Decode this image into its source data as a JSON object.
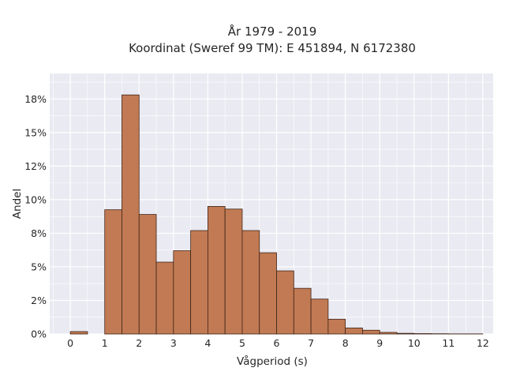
{
  "chart_data": {
    "type": "bar",
    "title_line1": "År 1979 - 2019",
    "title_line2": "Koordinat (Sweref 99 TM): E 451894, N 6172380",
    "xlabel": "Vågperiod (s)",
    "ylabel": "Andel",
    "bin_width": 0.5,
    "bins": [
      {
        "x0": 0.0,
        "value": 0.18
      },
      {
        "x0": 0.5,
        "value": 0.0
      },
      {
        "x0": 1.0,
        "value": 9.25
      },
      {
        "x0": 1.5,
        "value": 17.8
      },
      {
        "x0": 2.0,
        "value": 8.9
      },
      {
        "x0": 2.5,
        "value": 5.35
      },
      {
        "x0": 3.0,
        "value": 6.2
      },
      {
        "x0": 3.5,
        "value": 7.7
      },
      {
        "x0": 4.0,
        "value": 9.5
      },
      {
        "x0": 4.5,
        "value": 9.3
      },
      {
        "x0": 5.0,
        "value": 7.7
      },
      {
        "x0": 5.5,
        "value": 6.05
      },
      {
        "x0": 6.0,
        "value": 4.7
      },
      {
        "x0": 6.5,
        "value": 3.4
      },
      {
        "x0": 7.0,
        "value": 2.6
      },
      {
        "x0": 7.5,
        "value": 1.1
      },
      {
        "x0": 8.0,
        "value": 0.45
      },
      {
        "x0": 8.5,
        "value": 0.28
      },
      {
        "x0": 9.0,
        "value": 0.12
      },
      {
        "x0": 9.5,
        "value": 0.05
      },
      {
        "x0": 10.0,
        "value": 0.03
      },
      {
        "x0": 10.5,
        "value": 0.02
      },
      {
        "x0": 11.0,
        "value": 0.01
      },
      {
        "x0": 11.5,
        "value": 0.01
      }
    ],
    "xlim": [
      -0.6,
      12.3
    ],
    "ylim": [
      0,
      19.4
    ],
    "xticks": [
      0,
      1,
      2,
      3,
      4,
      5,
      6,
      7,
      8,
      9,
      10,
      11,
      12
    ],
    "xtick_labels": [
      "0",
      "1",
      "2",
      "3",
      "4",
      "5",
      "6",
      "7",
      "8",
      "9",
      "10",
      "11",
      "12"
    ],
    "yticks": [
      0,
      2.5,
      5,
      7.5,
      10,
      12.5,
      15,
      17.5
    ],
    "ytick_labels": [
      "0%",
      "2%",
      "5%",
      "8%",
      "10%",
      "12%",
      "15%",
      "18%"
    ],
    "grid": true,
    "colors": {
      "bar_fill": "#c17a53",
      "bar_edge": "#3f2418",
      "plot_bg": "#eaeaf2",
      "grid": "#ffffff",
      "text": "#262626"
    }
  }
}
